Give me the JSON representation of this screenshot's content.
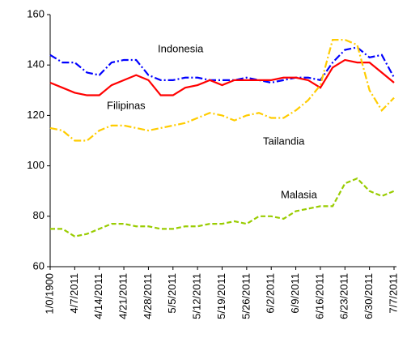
{
  "chart_data": {
    "type": "line",
    "categories": [
      "1/0/1900",
      null,
      "4/7/2011",
      null,
      "4/14/2011",
      null,
      "4/21/2011",
      null,
      "4/28/2011",
      null,
      "5/5/2011",
      null,
      "5/12/2011",
      null,
      "5/19/2011",
      null,
      "5/26/2011",
      null,
      "6/2/2011",
      null,
      "6/9/2011",
      null,
      "6/16/2011",
      null,
      "6/23/2011",
      null,
      "6/30/2011",
      null,
      "7/7/2011"
    ],
    "series": [
      {
        "name": "Indonesia",
        "color": "#0000ff",
        "values": [
          144,
          141,
          141,
          137,
          136,
          141,
          142,
          142,
          136,
          134,
          134,
          135,
          135,
          134,
          134,
          134,
          135,
          134,
          133,
          134,
          135,
          135,
          134,
          141,
          146,
          147,
          143,
          144,
          135
        ]
      },
      {
        "name": "Filipinas",
        "color": "#ff0000",
        "values": [
          133,
          131,
          129,
          128,
          128,
          132,
          134,
          136,
          134,
          128,
          128,
          131,
          132,
          134,
          132,
          134,
          134,
          134,
          134,
          135,
          135,
          134,
          131,
          139,
          142,
          141,
          141,
          137,
          133
        ]
      },
      {
        "name": "Tailandia",
        "color": "#ffcc00",
        "values": [
          115,
          114,
          110,
          110,
          114,
          116,
          116,
          115,
          114,
          115,
          116,
          117,
          119,
          121,
          120,
          118,
          120,
          121,
          119,
          119,
          122,
          126,
          132,
          150,
          150,
          148,
          130,
          122,
          127
        ]
      },
      {
        "name": "Malasia",
        "color": "#99cc00",
        "values": [
          75,
          75,
          72,
          73,
          75,
          77,
          77,
          76,
          76,
          75,
          75,
          76,
          76,
          77,
          77,
          78,
          77,
          80,
          80,
          79,
          82,
          83,
          84,
          84,
          93,
          95,
          90,
          88,
          90
        ]
      }
    ],
    "ylim": [
      60,
      160
    ],
    "yticks": [
      60,
      80,
      100,
      120,
      140,
      160
    ],
    "grid": false
  }
}
